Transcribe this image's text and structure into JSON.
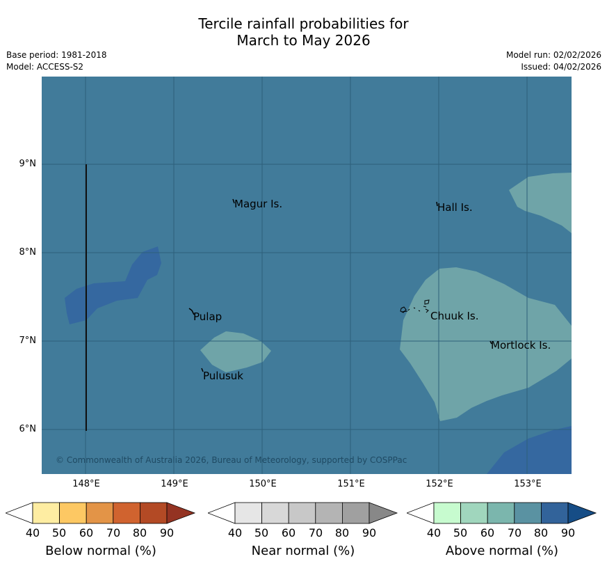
{
  "title_line1": "Tercile rainfall probabilities for",
  "title_line2": "March to May 2026",
  "meta": {
    "base_period": "Base period: 1981-2018",
    "model": "Model: ACCESS-S2",
    "model_run": "Model run: 02/02/2026",
    "issued": "Issued: 04/02/2026"
  },
  "map": {
    "lat_labels": [
      "9°N",
      "8°N",
      "7°N",
      "6°N"
    ],
    "lon_labels": [
      "148°E",
      "149°E",
      "150°E",
      "151°E",
      "152°E",
      "153°E"
    ],
    "places": [
      "Magur Is.",
      "Hall Is.",
      "Pulap",
      "Chuuk Is.",
      "Mortlock Is.",
      "Pulusuk"
    ],
    "copyright": "© Commonwealth of Australia 2026, Bureau of Meteorology, supported by COSPPac",
    "colors": {
      "ocean": "#417b9a",
      "above_70": "#6fa4a8",
      "above_80": "#3568a0",
      "grid": "#2d5f7a"
    }
  },
  "legends": [
    {
      "title": "Below normal (%)",
      "ticks": [
        "40",
        "50",
        "60",
        "70",
        "80",
        "90"
      ],
      "colors": [
        "#ffffff",
        "#feeda2",
        "#fdc863",
        "#e39447",
        "#d0632f",
        "#b34a25",
        "#943322"
      ]
    },
    {
      "title": "Near normal (%)",
      "ticks": [
        "40",
        "50",
        "60",
        "70",
        "80",
        "90"
      ],
      "colors": [
        "#ffffff",
        "#e6e6e6",
        "#d8d8d8",
        "#c8c8c8",
        "#b4b4b4",
        "#a0a0a0",
        "#888888"
      ]
    },
    {
      "title": "Above normal (%)",
      "ticks": [
        "40",
        "50",
        "60",
        "70",
        "80",
        "90"
      ],
      "colors": [
        "#ffffff",
        "#c7fbcf",
        "#a0d6bd",
        "#7bb6ad",
        "#5a92a2",
        "#32639a",
        "#164d86"
      ]
    }
  ]
}
